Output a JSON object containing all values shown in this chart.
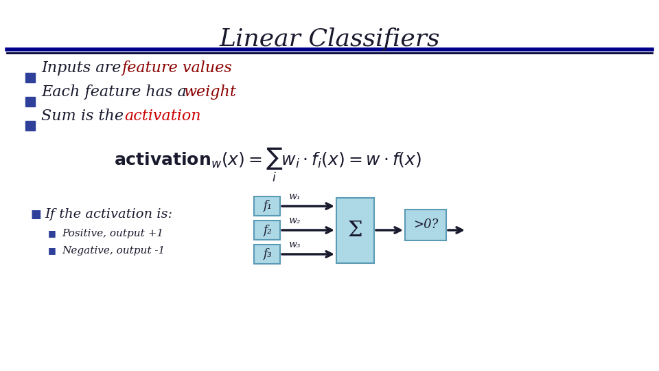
{
  "title": "Linear Classifiers",
  "title_fontsize": 26,
  "title_color": "#1a1a2e",
  "title_font": "serif",
  "separator_color_top": "#00008B",
  "separator_color_bottom": "#000033",
  "bullet_color": "#2e4099",
  "bullet_items": [
    {
      "text_parts": [
        {
          "text": "Inputs are ",
          "color": "#1a1a2e"
        },
        {
          "text": "feature values",
          "color": "#8B0000"
        }
      ]
    },
    {
      "text_parts": [
        {
          "text": "Each feature has a ",
          "color": "#1a1a2e"
        },
        {
          "text": "weight",
          "color": "#8B0000"
        }
      ]
    },
    {
      "text_parts": [
        {
          "text": "Sum is the ",
          "color": "#1a1a2e"
        },
        {
          "text": "activation",
          "color": "#cc0000"
        }
      ]
    }
  ],
  "bullet_fontsize": 16,
  "sub_bullet_color": "#2e4099",
  "sub_bullet_items": [
    {
      "text": "If the activation is:",
      "color": "#1a1a2e",
      "fontsize": 14
    },
    {
      "text": "Positive, output +1",
      "color": "#1a1a2e",
      "fontsize": 11
    },
    {
      "text": "Negative, output -1",
      "color": "#1a1a2e",
      "fontsize": 11
    }
  ],
  "box_color": "#add8e6",
  "box_edge_color": "#5a9ab5",
  "feature_labels": [
    "f₁",
    "f₂",
    "f₃"
  ],
  "weight_labels": [
    "w₁",
    "w₂",
    "w₃"
  ],
  "sigma_text": "Σ",
  "decision_text": ">0?",
  "formula": "activation$_{w}(x) = \\sum_i w_i \\cdot f_i(x) = w \\cdot f(x)$"
}
